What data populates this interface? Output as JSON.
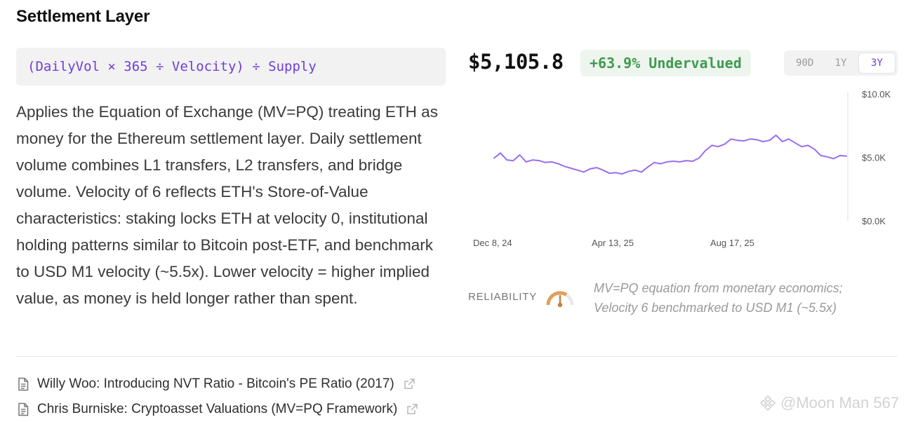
{
  "section": {
    "title": "Settlement Layer"
  },
  "formula": "(DailyVol × 365 ÷ Velocity) ÷ Supply",
  "description": "Applies the Equation of Exchange (MV=PQ) treating ETH as money for the Ethereum settlement layer. Daily settlement volume combines L1 transfers, L2 transfers, and bridge volume. Velocity of 6 reflects ETH's Store-of-Value characteristics: staking locks ETH at velocity 0, institutional holding patterns similar to Bitcoin post-ETF, and benchmark to USD M1 velocity (~5.5x). Lower velocity = higher implied value, as money is held longer rather than spent.",
  "valuation": {
    "price": "$5,105.8",
    "badge": "+63.9% Undervalued",
    "badge_color": "#3f9a4f"
  },
  "range_tabs": [
    {
      "label": "90D",
      "active": false
    },
    {
      "label": "1Y",
      "active": false
    },
    {
      "label": "3Y",
      "active": true
    }
  ],
  "chart_data": {
    "type": "line",
    "x_tick_labels": [
      "Dec 8, 24",
      "Apr 13, 25",
      "Aug 17, 25"
    ],
    "y_tick_labels": [
      "$10.0K",
      "$5.0K",
      "$0.0K"
    ],
    "ylim": [
      0,
      10000
    ],
    "line_color": "#9b6cf0",
    "grid": false,
    "series": [
      {
        "values": [
          5000,
          5400,
          4850,
          4800,
          5250,
          4700,
          4850,
          4800,
          4650,
          4700,
          4550,
          4350,
          4200,
          4050,
          3900,
          4150,
          4250,
          4050,
          3800,
          3850,
          3750,
          3950,
          4050,
          3900,
          4300,
          4650,
          4550,
          4700,
          4750,
          4700,
          4800,
          4750,
          5000,
          5600,
          6000,
          5900,
          6100,
          6500,
          6400,
          6350,
          6500,
          6450,
          6300,
          6400,
          6800,
          6300,
          6500,
          6200,
          5900,
          6000,
          5700,
          5200,
          5100,
          4950,
          5200,
          5150
        ]
      }
    ]
  },
  "reliability": {
    "label": "RELIABILITY",
    "note": "MV=PQ equation from monetary economics; Velocity 6 benchmarked to USD M1 (~5.5x)"
  },
  "sources": [
    {
      "label": "Willy Woo: Introducing NVT Ratio - Bitcoin's PE Ratio (2017)"
    },
    {
      "label": "Chris Burniske: Cryptoasset Valuations (MV=PQ Framework)"
    }
  ],
  "watermark": "@Moon Man 567"
}
